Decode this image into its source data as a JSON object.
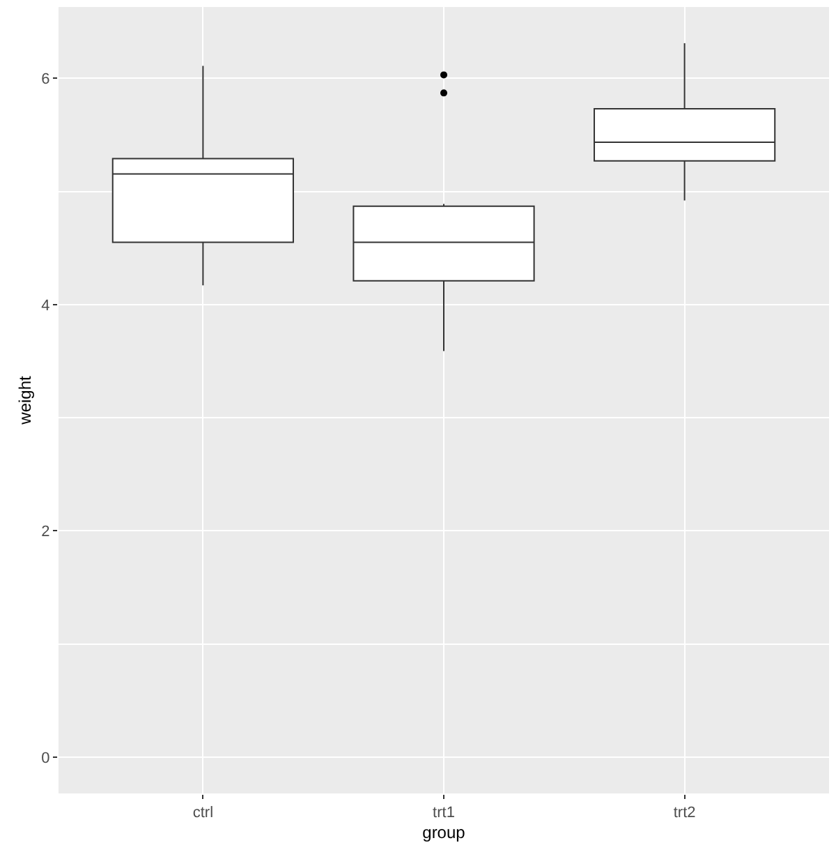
{
  "chart_data": {
    "type": "box",
    "xlabel": "group",
    "ylabel": "weight",
    "categories": [
      "ctrl",
      "trt1",
      "trt2"
    ],
    "boxes": [
      {
        "low": 4.17,
        "q1": 4.55,
        "median": 5.155,
        "q3": 5.29,
        "high": 6.11
      },
      {
        "low": 3.59,
        "q1": 4.21,
        "median": 4.55,
        "q3": 4.87,
        "high": 4.89,
        "outliers": [
          5.87,
          6.03
        ]
      },
      {
        "low": 4.92,
        "q1": 5.27,
        "median": 5.435,
        "q3": 5.73,
        "high": 6.31
      }
    ],
    "color": "#ffffff",
    "ylim": [
      -0.32,
      6.63
    ],
    "yticks": [
      0,
      2,
      4,
      6
    ],
    "grid": true
  }
}
